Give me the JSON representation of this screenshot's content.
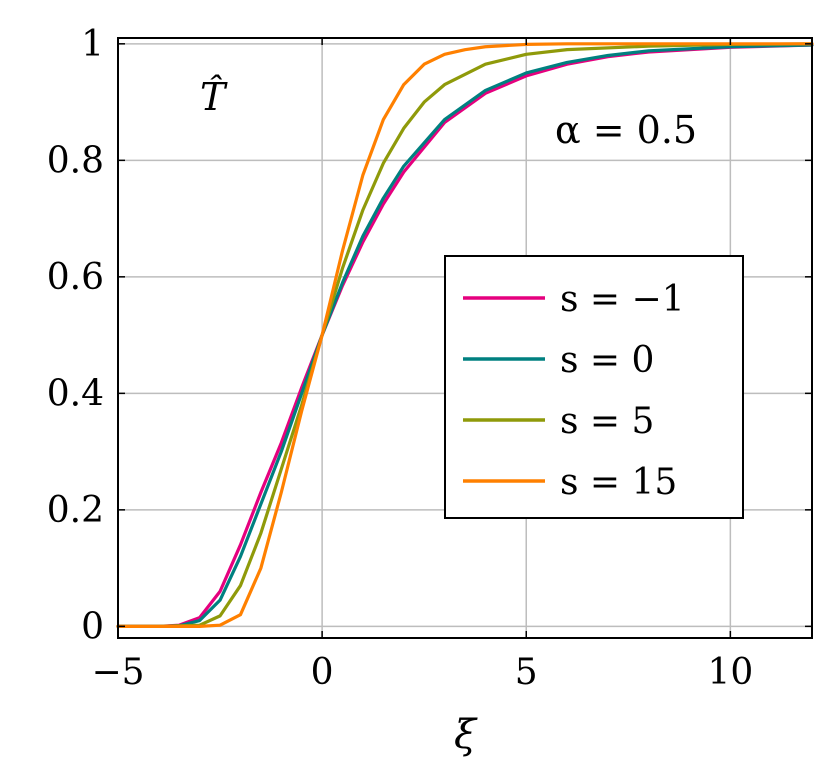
{
  "chart_data": {
    "type": "line",
    "xlabel": "ξ",
    "ylabel_annotation": "T̂",
    "annotation": "α = 0.5",
    "xlim": [
      -5,
      12
    ],
    "ylim": [
      -0.02,
      1.01
    ],
    "x_ticks": [
      -5,
      0,
      5,
      10
    ],
    "x_tick_labels": [
      "−5",
      "0",
      "5",
      "10"
    ],
    "y_ticks": [
      0,
      0.2,
      0.4,
      0.6,
      0.8,
      1
    ],
    "y_tick_labels": [
      "0",
      "0.2",
      "0.4",
      "0.6",
      "0.8",
      "1"
    ],
    "grid": true,
    "legend_position": "center-right",
    "series": [
      {
        "name": "s = −1",
        "color": "#e5007e",
        "x": [
          -5,
          -4,
          -3.5,
          -3,
          -2.5,
          -2,
          -1.5,
          -1,
          -0.5,
          0,
          0.5,
          1,
          1.5,
          2,
          3,
          4,
          5,
          6,
          7,
          8,
          10,
          12
        ],
        "y": [
          0,
          0,
          0.002,
          0.015,
          0.06,
          0.14,
          0.23,
          0.315,
          0.41,
          0.5,
          0.585,
          0.66,
          0.725,
          0.78,
          0.865,
          0.915,
          0.945,
          0.965,
          0.978,
          0.986,
          0.994,
          0.998
        ]
      },
      {
        "name": "s = 0",
        "color": "#008080",
        "x": [
          -5,
          -4,
          -3.5,
          -3,
          -2.5,
          -2,
          -1.5,
          -1,
          -0.5,
          0,
          0.5,
          1,
          1.5,
          2,
          3,
          4,
          5,
          6,
          7,
          8,
          10,
          12
        ],
        "y": [
          0,
          0,
          0.001,
          0.01,
          0.045,
          0.12,
          0.21,
          0.3,
          0.4,
          0.5,
          0.59,
          0.67,
          0.735,
          0.79,
          0.87,
          0.92,
          0.95,
          0.968,
          0.98,
          0.988,
          0.995,
          0.998
        ]
      },
      {
        "name": "s = 5",
        "color": "#8f9a0a",
        "x": [
          -5,
          -4,
          -3,
          -2.5,
          -2,
          -1.5,
          -1,
          -0.5,
          0,
          0.5,
          1,
          1.5,
          2,
          2.5,
          3,
          4,
          5,
          6,
          8,
          10,
          12
        ],
        "y": [
          0,
          0,
          0.002,
          0.018,
          0.07,
          0.16,
          0.27,
          0.38,
          0.5,
          0.615,
          0.715,
          0.795,
          0.855,
          0.9,
          0.93,
          0.965,
          0.982,
          0.99,
          0.996,
          0.999,
          1
        ]
      },
      {
        "name": "s = 15",
        "color": "#ff8000",
        "x": [
          -5,
          -3,
          -2.5,
          -2,
          -1.5,
          -1,
          -0.5,
          0,
          0.5,
          1,
          1.5,
          2,
          2.5,
          3,
          3.5,
          4,
          5,
          6,
          8,
          12
        ],
        "y": [
          0,
          0,
          0.002,
          0.02,
          0.1,
          0.23,
          0.37,
          0.5,
          0.645,
          0.775,
          0.87,
          0.93,
          0.965,
          0.982,
          0.99,
          0.995,
          0.999,
          1,
          1,
          1
        ]
      }
    ]
  }
}
